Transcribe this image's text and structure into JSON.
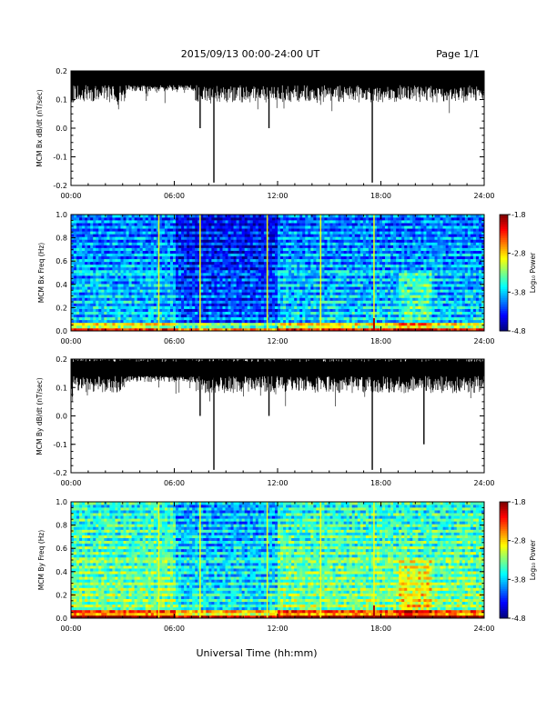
{
  "header": {
    "title": "2015/09/13  00:00-24:00 UT",
    "page": "Page 1/1"
  },
  "xaxis": {
    "title": "Universal Time (hh:mm)",
    "ticks": [
      "00:00",
      "06:00",
      "12:00",
      "18:00",
      "24:00"
    ]
  },
  "colorbar": {
    "label": "Log₁₀ Power",
    "ticks": [
      "-1.8",
      "-2.8",
      "-3.8",
      "-4.8"
    ]
  },
  "chart_data": [
    {
      "type": "line",
      "ylabel": "MCM Bx dB/dt (nT/sec)",
      "x_range_hours": [
        0,
        24
      ],
      "ylim": [
        -0.2,
        0.2
      ],
      "yticks": [
        "-0.2",
        "-0.1",
        "0.0",
        "0.1",
        "0.2"
      ],
      "series": [
        {
          "values_note": "noisy record, baseline ~0.17",
          "baseline": 0.17,
          "spikes": [
            {
              "x": 7.5,
              "y": 0.0
            },
            {
              "x": 8.3,
              "y": -0.19
            },
            {
              "x": 11.5,
              "y": 0.0
            },
            {
              "x": 17.5,
              "y": -0.19
            }
          ]
        }
      ]
    },
    {
      "type": "heatmap",
      "ylabel": "MCM Bx Freq (Hz)",
      "x_range_hours": [
        0,
        24
      ],
      "ylim": [
        0.0,
        1.0
      ],
      "yticks": [
        "0.0",
        "0.2",
        "0.4",
        "0.6",
        "0.8",
        "1.0"
      ],
      "color_range": [
        -4.8,
        -1.8
      ],
      "bright_columns_hours": [
        5.1,
        7.5,
        11.4,
        14.5,
        17.6
      ]
    },
    {
      "type": "line",
      "ylabel": "MCM By dB/dt (nT/sec)",
      "x_range_hours": [
        0,
        24
      ],
      "ylim": [
        -0.2,
        0.2
      ],
      "yticks": [
        "-0.2",
        "-0.1",
        "0.0",
        "0.1",
        "0.2"
      ],
      "series": [
        {
          "baseline": 0.16,
          "spikes": [
            {
              "x": 7.5,
              "y": 0.0
            },
            {
              "x": 8.3,
              "y": -0.19
            },
            {
              "x": 11.5,
              "y": 0.0
            },
            {
              "x": 17.5,
              "y": -0.19
            },
            {
              "x": 20.5,
              "y": -0.1
            }
          ]
        }
      ]
    },
    {
      "type": "heatmap",
      "ylabel": "MCM By Freq (Hz)",
      "x_range_hours": [
        0,
        24
      ],
      "ylim": [
        0.0,
        1.0
      ],
      "yticks": [
        "0.0",
        "0.2",
        "0.4",
        "0.6",
        "0.8",
        "1.0"
      ],
      "color_range": [
        -4.8,
        -1.8
      ],
      "bright_columns_hours": [
        5.1,
        7.5,
        11.4,
        14.5,
        17.6
      ]
    }
  ]
}
